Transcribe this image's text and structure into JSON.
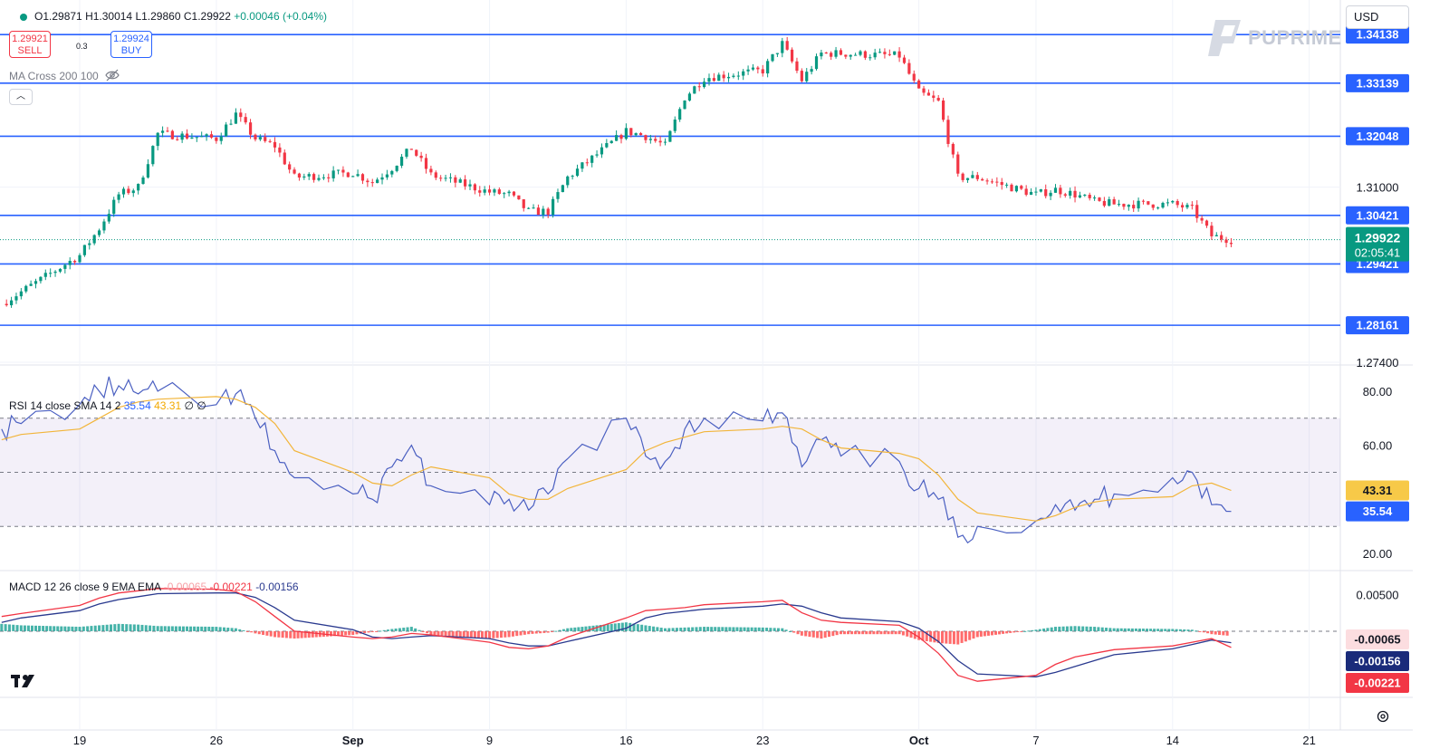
{
  "header": {
    "ohlc": {
      "o": "O1.29871",
      "h": "H1.30014",
      "l": "L1.29860",
      "c": "C1.29922",
      "change": "+0.00046 (+0.04%)"
    },
    "sell": {
      "price": "1.29921",
      "label": "SELL"
    },
    "buy": {
      "price": "1.29924",
      "label": "BUY"
    },
    "spread": "0.3",
    "ma_label": "MA Cross 200 100",
    "currency": "USD",
    "brand": "PUPRIME"
  },
  "chart_data": [
    {
      "type": "candlestick",
      "y_ticks": [
        "1.31000",
        "1.27400"
      ],
      "ylim": [
        1.274,
        1.347
      ],
      "last_price": 1.29922,
      "last_price_label": "1.29922",
      "countdown": "02:05:41",
      "horizontal_levels": [
        1.34138,
        1.33139,
        1.32048,
        1.30421,
        1.29421,
        1.28161
      ],
      "level_labels": [
        "1.34138",
        "1.33139",
        "1.32048",
        "1.30421",
        "1.29421",
        "1.28161"
      ],
      "x_labels": [
        "19",
        "26",
        "Sep",
        "9",
        "16",
        "23",
        "Oct",
        "7",
        "14",
        "21"
      ],
      "x_label_dates": [
        "2024-08-19",
        "2024-08-26",
        "2024-09-02",
        "2024-09-09",
        "2024-09-16",
        "2024-09-23",
        "2024-10-01",
        "2024-10-07",
        "2024-10-14",
        "2024-10-21"
      ],
      "close_path": [
        [
          "2024-08-15",
          1.286
        ],
        [
          "2024-08-16",
          1.2885
        ],
        [
          "2024-08-19",
          1.296
        ],
        [
          "2024-08-20",
          1.3015
        ],
        [
          "2024-08-21",
          1.3085
        ],
        [
          "2024-08-22",
          1.31
        ],
        [
          "2024-08-23",
          1.321
        ],
        [
          "2024-08-26",
          1.32
        ],
        [
          "2024-08-27",
          1.325
        ],
        [
          "2024-08-28",
          1.32
        ],
        [
          "2024-08-29",
          1.3185
        ],
        [
          "2024-08-30",
          1.312
        ],
        [
          "2024-09-02",
          1.313
        ],
        [
          "2024-09-03",
          1.311
        ],
        [
          "2024-09-04",
          1.314
        ],
        [
          "2024-09-05",
          1.318
        ],
        [
          "2024-09-06",
          1.3125
        ],
        [
          "2024-09-09",
          1.309
        ],
        [
          "2024-09-10",
          1.3085
        ],
        [
          "2024-09-11",
          1.305
        ],
        [
          "2024-09-12",
          1.305
        ],
        [
          "2024-09-13",
          1.312
        ],
        [
          "2024-09-16",
          1.3215
        ],
        [
          "2024-09-17",
          1.3205
        ],
        [
          "2024-09-18",
          1.3185
        ],
        [
          "2024-09-19",
          1.3285
        ],
        [
          "2024-09-20",
          1.3325
        ],
        [
          "2024-09-23",
          1.334
        ],
        [
          "2024-09-24",
          1.3395
        ],
        [
          "2024-09-25",
          1.332
        ],
        [
          "2024-09-26",
          1.3375
        ],
        [
          "2024-09-27",
          1.3375
        ],
        [
          "2024-09-30",
          1.337
        ],
        [
          "2024-10-01",
          1.3295
        ],
        [
          "2024-10-02",
          1.3275
        ],
        [
          "2024-10-03",
          1.312
        ],
        [
          "2024-10-04",
          1.312
        ],
        [
          "2024-10-07",
          1.3085
        ],
        [
          "2024-10-08",
          1.3095
        ],
        [
          "2024-10-09",
          1.3085
        ],
        [
          "2024-10-10",
          1.307
        ],
        [
          "2024-10-11",
          1.3065
        ],
        [
          "2024-10-14",
          1.3065
        ],
        [
          "2024-10-15",
          1.3055
        ],
        [
          "2024-10-16",
          1.3
        ],
        [
          "2024-10-17",
          1.2992
        ]
      ]
    },
    {
      "type": "line",
      "label": "RSI 14 close SMA 14 2",
      "values_label": [
        "35.54",
        "43.31",
        "∅",
        "∅"
      ],
      "y_ticks": [
        "80.00",
        "60.00",
        "20.00"
      ],
      "ylim": [
        15,
        88
      ],
      "bands": [
        30,
        70
      ],
      "mid": 50,
      "rsi_last_label": "35.54",
      "sma_last_label": "43.31",
      "rsi": [
        [
          "2024-08-15",
          66
        ],
        [
          "2024-08-16",
          68
        ],
        [
          "2024-08-19",
          75
        ],
        [
          "2024-08-20",
          80
        ],
        [
          "2024-08-21",
          82
        ],
        [
          "2024-08-22",
          79
        ],
        [
          "2024-08-23",
          80
        ],
        [
          "2024-08-26",
          75
        ],
        [
          "2024-08-27",
          79
        ],
        [
          "2024-08-28",
          70
        ],
        [
          "2024-08-29",
          58
        ],
        [
          "2024-08-30",
          48
        ],
        [
          "2024-09-02",
          42
        ],
        [
          "2024-09-03",
          40
        ],
        [
          "2024-09-04",
          52
        ],
        [
          "2024-09-05",
          60
        ],
        [
          "2024-09-06",
          45
        ],
        [
          "2024-09-09",
          38
        ],
        [
          "2024-09-10",
          40
        ],
        [
          "2024-09-11",
          36
        ],
        [
          "2024-09-12",
          42
        ],
        [
          "2024-09-13",
          55
        ],
        [
          "2024-09-16",
          70
        ],
        [
          "2024-09-17",
          56
        ],
        [
          "2024-09-18",
          54
        ],
        [
          "2024-09-19",
          66
        ],
        [
          "2024-09-20",
          70
        ],
        [
          "2024-09-23",
          69
        ],
        [
          "2024-09-24",
          72
        ],
        [
          "2024-09-25",
          52
        ],
        [
          "2024-09-26",
          62
        ],
        [
          "2024-09-27",
          56
        ],
        [
          "2024-09-30",
          54
        ],
        [
          "2024-10-01",
          44
        ],
        [
          "2024-10-02",
          40
        ],
        [
          "2024-10-03",
          26
        ],
        [
          "2024-10-04",
          30
        ],
        [
          "2024-10-07",
          32
        ],
        [
          "2024-10-08",
          38
        ],
        [
          "2024-10-09",
          36
        ],
        [
          "2024-10-10",
          40
        ],
        [
          "2024-10-11",
          42
        ],
        [
          "2024-10-14",
          48
        ],
        [
          "2024-10-15",
          50
        ],
        [
          "2024-10-16",
          38
        ],
        [
          "2024-10-17",
          35.54
        ]
      ],
      "sma": [
        [
          "2024-08-15",
          62
        ],
        [
          "2024-08-16",
          64
        ],
        [
          "2024-08-19",
          66
        ],
        [
          "2024-08-20",
          70
        ],
        [
          "2024-08-21",
          74
        ],
        [
          "2024-08-22",
          76
        ],
        [
          "2024-08-23",
          77
        ],
        [
          "2024-08-26",
          78
        ],
        [
          "2024-08-27",
          77
        ],
        [
          "2024-08-28",
          74
        ],
        [
          "2024-08-29",
          68
        ],
        [
          "2024-08-30",
          58
        ],
        [
          "2024-09-02",
          50
        ],
        [
          "2024-09-03",
          46
        ],
        [
          "2024-09-04",
          45
        ],
        [
          "2024-09-05",
          49
        ],
        [
          "2024-09-06",
          52
        ],
        [
          "2024-09-09",
          48
        ],
        [
          "2024-09-10",
          42
        ],
        [
          "2024-09-11",
          40
        ],
        [
          "2024-09-12",
          40
        ],
        [
          "2024-09-13",
          44
        ],
        [
          "2024-09-16",
          51
        ],
        [
          "2024-09-17",
          58
        ],
        [
          "2024-09-18",
          61
        ],
        [
          "2024-09-19",
          63
        ],
        [
          "2024-09-20",
          65
        ],
        [
          "2024-09-23",
          66
        ],
        [
          "2024-09-24",
          67
        ],
        [
          "2024-09-25",
          66
        ],
        [
          "2024-09-26",
          62
        ],
        [
          "2024-09-27",
          59
        ],
        [
          "2024-09-30",
          57
        ],
        [
          "2024-10-01",
          55
        ],
        [
          "2024-10-02",
          49
        ],
        [
          "2024-10-03",
          40
        ],
        [
          "2024-10-04",
          35
        ],
        [
          "2024-10-07",
          32
        ],
        [
          "2024-10-08",
          34
        ],
        [
          "2024-10-09",
          37
        ],
        [
          "2024-10-10",
          39
        ],
        [
          "2024-10-11",
          40
        ],
        [
          "2024-10-14",
          41
        ],
        [
          "2024-10-15",
          45
        ],
        [
          "2024-10-16",
          46
        ],
        [
          "2024-10-17",
          43.31
        ]
      ]
    },
    {
      "type": "line",
      "label": "MACD 12 26 close 9 EMA EMA",
      "values_label": [
        "-0.00065",
        "-0.00221",
        "-0.00156"
      ],
      "y_ticks": [
        "0.00500"
      ],
      "ylim": [
        -0.0085,
        0.0075
      ],
      "hist_last_label": "-0.00065",
      "signal_last_label": "-0.00156",
      "macd_last_label": "-0.00221",
      "histogram": [
        0.001,
        0.0008,
        0.0006,
        0.0008,
        0.001,
        0.0009,
        0.0007,
        0.0006,
        0.0004,
        -0.0003,
        -0.0008,
        -0.001,
        -0.0005,
        -0.0001,
        0.0003,
        0.0006,
        -0.0005,
        -0.001,
        -0.0008,
        -0.0004,
        -0.0002,
        0.0004,
        0.0012,
        0.0008,
        0.0004,
        0.0005,
        0.0006,
        0.0005,
        0.0004,
        -0.0006,
        -0.001,
        -0.0004,
        -0.0004,
        -0.0012,
        -0.0016,
        -0.0018,
        -0.0008,
        0.0002,
        0.0006,
        0.0007,
        0.0006,
        0.0004,
        0.0003,
        0.0002,
        -0.0004,
        -0.00065
      ],
      "macd": [
        0.002,
        0.0024,
        0.0035,
        0.0045,
        0.0052,
        0.0055,
        0.0058,
        0.0057,
        0.0054,
        0.004,
        0.002,
        0.0,
        -0.0008,
        -0.001,
        -0.0008,
        -0.0003,
        -0.0005,
        -0.0015,
        -0.0022,
        -0.0024,
        -0.002,
        -0.0008,
        0.0018,
        0.0028,
        0.003,
        0.0032,
        0.0036,
        0.004,
        0.0042,
        0.0025,
        0.0015,
        0.0012,
        0.0008,
        -0.0008,
        -0.003,
        -0.006,
        -0.0068,
        -0.006,
        -0.0045,
        -0.0035,
        -0.003,
        -0.0025,
        -0.002,
        -0.0015,
        -0.001,
        -0.00221
      ],
      "signal": [
        0.0012,
        0.0018,
        0.0028,
        0.0037,
        0.0043,
        0.0047,
        0.0051,
        0.0052,
        0.0052,
        0.0046,
        0.0032,
        0.0015,
        0.0002,
        -0.0008,
        -0.001,
        -0.0008,
        -0.0006,
        -0.001,
        -0.0016,
        -0.002,
        -0.002,
        -0.0014,
        0.0004,
        0.0018,
        0.0024,
        0.0027,
        0.003,
        0.0034,
        0.0037,
        0.0034,
        0.0025,
        0.0018,
        0.0013,
        0.0004,
        -0.0014,
        -0.004,
        -0.0058,
        -0.0062,
        -0.0056,
        -0.0048,
        -0.004,
        -0.0032,
        -0.0024,
        -0.0018,
        -0.0012,
        -0.00156
      ]
    }
  ]
}
